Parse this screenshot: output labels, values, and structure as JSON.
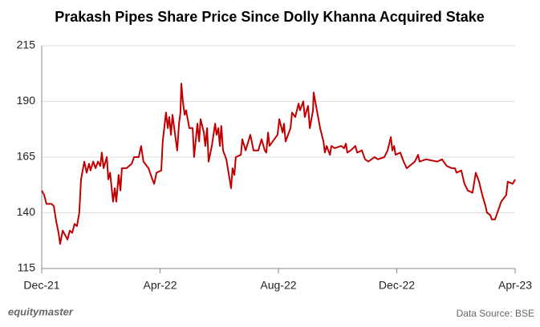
{
  "chart_data": {
    "type": "line",
    "title": "Prakash Pipes Share Price Since Dolly Khanna Acquired Stake",
    "source": "Data Source: BSE",
    "brand": "equitymaster",
    "color": "#c00000",
    "grid": true,
    "xlim": [
      0,
      16
    ],
    "xticks": [
      {
        "value": 0,
        "label": "Dec-21"
      },
      {
        "value": 4,
        "label": "Apr-22"
      },
      {
        "value": 8,
        "label": "Aug-22"
      },
      {
        "value": 12,
        "label": "Dec-22"
      },
      {
        "value": 16,
        "label": "Apr-23"
      }
    ],
    "ylim": [
      115,
      215
    ],
    "yticks": [
      115,
      140,
      165,
      190,
      215
    ],
    "x": [
      0.0,
      0.08,
      0.16,
      0.33,
      0.41,
      0.49,
      0.57,
      0.62,
      0.71,
      0.87,
      0.95,
      1.03,
      1.11,
      1.19,
      1.27,
      1.33,
      1.44,
      1.52,
      1.6,
      1.65,
      1.74,
      1.82,
      1.9,
      1.98,
      2.03,
      2.09,
      2.2,
      2.25,
      2.31,
      2.41,
      2.47,
      2.52,
      2.6,
      2.66,
      2.71,
      2.87,
      3.04,
      3.12,
      3.28,
      3.36,
      3.44,
      3.61,
      3.74,
      3.8,
      3.88,
      4.04,
      4.09,
      4.2,
      4.26,
      4.31,
      4.37,
      4.42,
      4.53,
      4.58,
      4.64,
      4.69,
      4.72,
      4.77,
      4.83,
      4.88,
      4.99,
      5.1,
      5.15,
      5.26,
      5.32,
      5.37,
      5.48,
      5.53,
      5.59,
      5.64,
      5.75,
      5.86,
      5.91,
      5.97,
      6.02,
      6.07,
      6.13,
      6.24,
      6.35,
      6.4,
      6.45,
      6.51,
      6.56,
      6.73,
      6.78,
      6.89,
      7.05,
      7.16,
      7.32,
      7.43,
      7.54,
      7.59,
      7.65,
      7.7,
      7.86,
      7.97,
      8.03,
      8.14,
      8.19,
      8.24,
      8.41,
      8.46,
      8.57,
      8.68,
      8.73,
      8.84,
      8.89,
      9.0,
      9.06,
      9.17,
      9.19,
      9.3,
      9.41,
      9.52,
      9.57,
      9.63,
      9.74,
      9.79,
      9.9,
      10.12,
      10.22,
      10.28,
      10.33,
      10.44,
      10.6,
      10.66,
      10.82,
      10.93,
      11.04,
      11.25,
      11.36,
      11.58,
      11.69,
      11.8,
      11.85,
      11.91,
      11.96,
      12.12,
      12.23,
      12.34,
      12.61,
      12.72,
      12.77,
      12.99,
      13.37,
      13.53,
      13.69,
      13.86,
      13.97,
      14.02,
      14.18,
      14.29,
      14.4,
      14.56,
      14.67,
      14.78,
      14.89,
      15.0,
      15.05,
      15.16,
      15.21,
      15.32,
      15.53,
      15.7,
      15.75,
      15.92,
      16.0
    ],
    "values": [
      150,
      148,
      144,
      144,
      143,
      136,
      131,
      126,
      132,
      128,
      132,
      131,
      135,
      134,
      140,
      155,
      163,
      158,
      162,
      159,
      163,
      160,
      163,
      161,
      167,
      160,
      165,
      155,
      158,
      145,
      151,
      145,
      157,
      150,
      160,
      160,
      162,
      165,
      165,
      170,
      163,
      160,
      155,
      153,
      158,
      159,
      172,
      185,
      178,
      183,
      175,
      184,
      173,
      168,
      180,
      185,
      198,
      190,
      184,
      186,
      178,
      178,
      165,
      180,
      172,
      182,
      176,
      170,
      178,
      163,
      170,
      180,
      175,
      178,
      170,
      179,
      168,
      164,
      155,
      151,
      160,
      157,
      165,
      166,
      173,
      168,
      175,
      168,
      168,
      173,
      168,
      167,
      176,
      170,
      173,
      175,
      182,
      176,
      180,
      172,
      178,
      185,
      183,
      189,
      186,
      190,
      183,
      188,
      178,
      186,
      194,
      186,
      178,
      172,
      167,
      170,
      166,
      170,
      169,
      170,
      169,
      171,
      167,
      168,
      170,
      167,
      168,
      164,
      163,
      165,
      164,
      165,
      168,
      174,
      168,
      170,
      166,
      167,
      163,
      160,
      163,
      166,
      163,
      164,
      163,
      164,
      161,
      160,
      160,
      158,
      159,
      153,
      150,
      149,
      158,
      154,
      148,
      143,
      140,
      139,
      137,
      137,
      145,
      148,
      154,
      153,
      155
    ]
  }
}
